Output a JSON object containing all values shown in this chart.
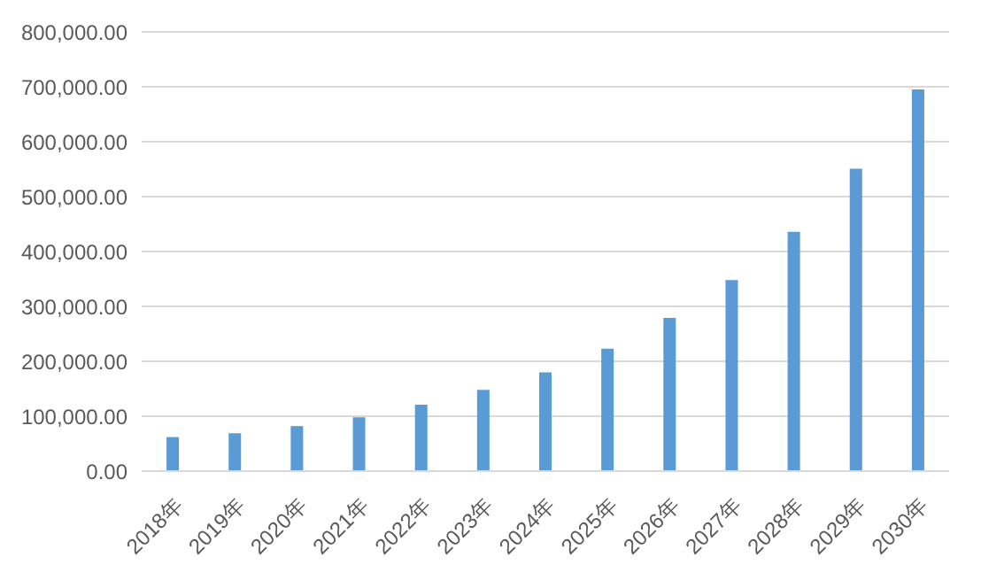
{
  "chart_data": {
    "type": "bar",
    "categories": [
      "2018年",
      "2019年",
      "2020年",
      "2021年",
      "2022年",
      "2023年",
      "2024年",
      "2025年",
      "2026年",
      "2027年",
      "2028年",
      "2029年",
      "2030年"
    ],
    "values": [
      62000,
      69000,
      82000,
      98000,
      121000,
      148000,
      180000,
      223000,
      279000,
      348000,
      436000,
      551000,
      695000
    ],
    "color": "#5b9bd5",
    "ylim": [
      0,
      800000
    ],
    "yticks": [
      {
        "value": 0,
        "label": "0.00"
      },
      {
        "value": 100000,
        "label": "100,000.00"
      },
      {
        "value": 200000,
        "label": "200,000.00"
      },
      {
        "value": 300000,
        "label": "300,000.00"
      },
      {
        "value": 400000,
        "label": "400,000.00"
      },
      {
        "value": 500000,
        "label": "500,000.00"
      },
      {
        "value": 600000,
        "label": "600,000.00"
      },
      {
        "value": 700000,
        "label": "700,000.00"
      },
      {
        "value": 800000,
        "label": "800,000.00"
      }
    ],
    "grid": "y",
    "legend": false
  }
}
